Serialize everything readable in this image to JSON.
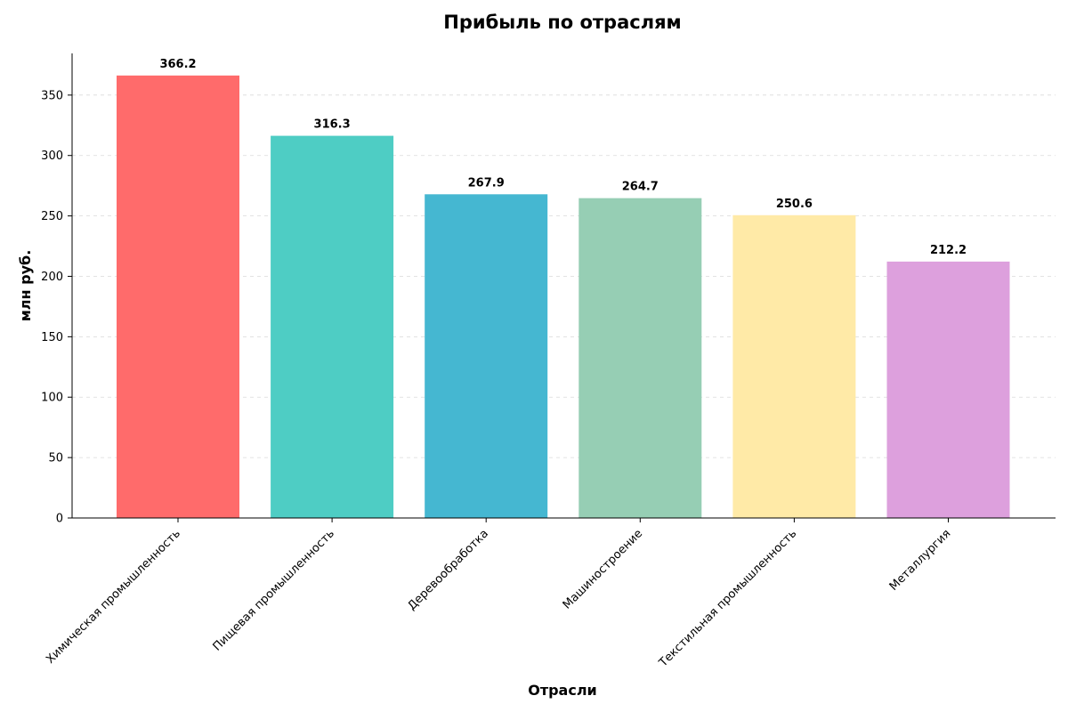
{
  "chart_data": {
    "type": "bar",
    "title": "Прибыль по отраслям",
    "xlabel": "Отрасли",
    "ylabel": "млн руб.",
    "categories": [
      "Химическая промышленность",
      "Пищевая промышленность",
      "Деревообработка",
      "Машиностроение",
      "Текстильная промышленность",
      "Металлургия"
    ],
    "values": [
      366.2,
      316.3,
      267.9,
      264.7,
      250.6,
      212.2
    ],
    "value_labels": [
      "366.2",
      "316.3",
      "267.9",
      "264.7",
      "250.6",
      "212.2"
    ],
    "colors": [
      "#FF6B6B",
      "#4ECDC4",
      "#45B7D1",
      "#96CEB4",
      "#FFEAA7",
      "#DDA0DD"
    ],
    "ylim": [
      0,
      384.5
    ],
    "yticks": [
      0,
      50,
      100,
      150,
      200,
      250,
      300,
      350
    ],
    "grid": true,
    "legend": "none"
  }
}
